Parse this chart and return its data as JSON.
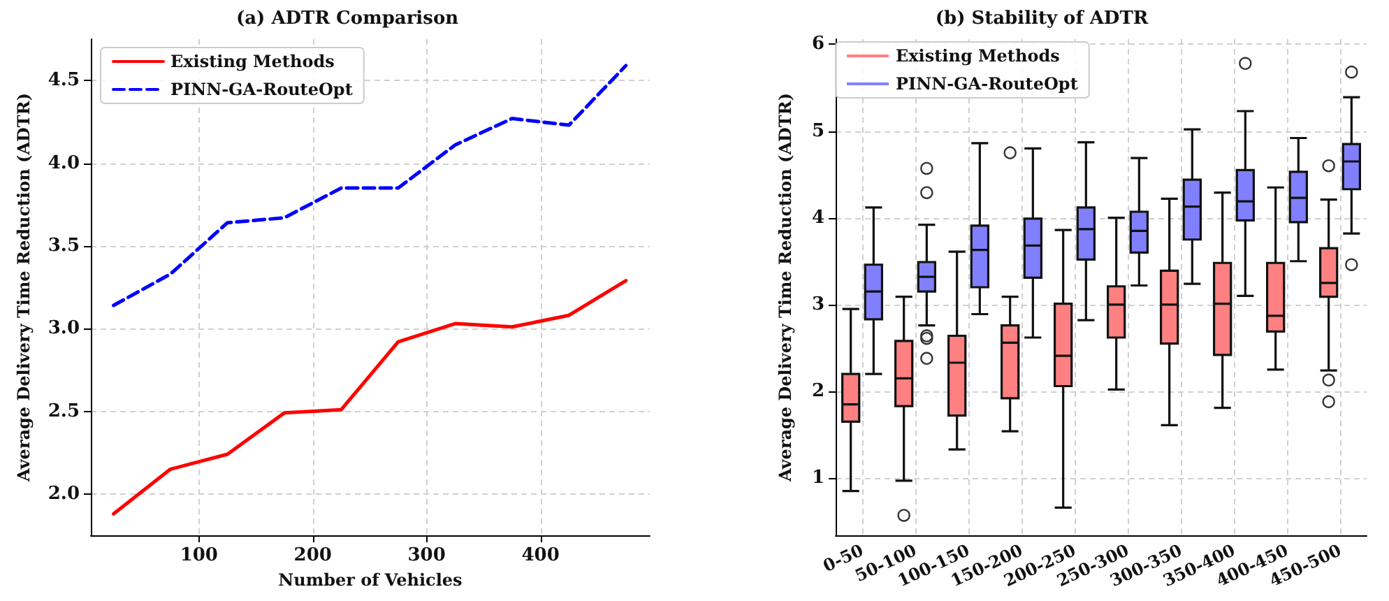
{
  "chart_data": [
    {
      "type": "line",
      "title": "(a) ADTR Comparison",
      "xlabel": "Number of Vehicles",
      "ylabel": "Average Delivery Time Reduction (ADTR)",
      "x": [
        25,
        75,
        125,
        175,
        225,
        275,
        325,
        375,
        425,
        475
      ],
      "series": [
        {
          "name": "Existing Methods",
          "color": "#ff0000",
          "line_style": "solid",
          "values": [
            1.88,
            2.15,
            2.24,
            2.49,
            2.51,
            2.92,
            3.03,
            3.01,
            3.08,
            3.29
          ]
        },
        {
          "name": "PINN-GA-RouteOpt",
          "color": "#0000ff",
          "line_style": "dashed",
          "values": [
            3.14,
            3.33,
            3.64,
            3.67,
            3.85,
            3.85,
            4.11,
            4.27,
            4.23,
            4.59
          ]
        }
      ],
      "xlim": [
        5,
        496
      ],
      "ylim": [
        1.75,
        4.75
      ],
      "xticks": [
        100,
        200,
        300,
        400
      ],
      "yticks": [
        {
          "value": 2,
          "label": "2.0"
        },
        2.5,
        {
          "value": 3,
          "label": "3.0"
        },
        3.5,
        {
          "value": 4,
          "label": "4.0"
        },
        4.5
      ],
      "grid": true,
      "legend": "top left",
      "marker": "none"
    },
    {
      "type": "box",
      "title": "(b) Stability of ADTR",
      "ylabel": "Average Delivery Time Reduction (ADTR)",
      "categories": [
        "0-50",
        "50-100",
        "100-150",
        "150-200",
        "200-250",
        "250-300",
        "300-350",
        "350-400",
        "400-450",
        "450-500"
      ],
      "series": [
        {
          "name": "Existing Methods",
          "color": "#ff8080",
          "boxes": [
            {
              "low": 0.85,
              "q1": 1.65,
              "median": 1.85,
              "q3": 2.2,
              "high": 2.95
            },
            {
              "low": 0.97,
              "q1": 1.83,
              "median": 2.15,
              "q3": 2.58,
              "high": 3.09,
              "outliers": [
                0.57
              ]
            },
            {
              "low": 1.33,
              "q1": 1.72,
              "median": 2.33,
              "q3": 2.64,
              "high": 3.61
            },
            {
              "low": 1.54,
              "q1": 1.92,
              "median": 2.56,
              "q3": 2.76,
              "high": 3.09,
              "outliers": [
                4.75
              ]
            },
            {
              "low": 0.66,
              "q1": 2.06,
              "median": 2.41,
              "q3": 3.01,
              "high": 3.86
            },
            {
              "low": 2.02,
              "q1": 2.62,
              "median": 3.0,
              "q3": 3.21,
              "high": 4.0
            },
            {
              "low": 1.61,
              "q1": 2.55,
              "median": 3.0,
              "q3": 3.39,
              "high": 4.22
            },
            {
              "low": 1.81,
              "q1": 2.42,
              "median": 3.01,
              "q3": 3.48,
              "high": 4.29
            },
            {
              "low": 2.25,
              "q1": 2.69,
              "median": 2.87,
              "q3": 3.48,
              "high": 4.35
            },
            {
              "low": 2.24,
              "q1": 3.09,
              "median": 3.25,
              "q3": 3.65,
              "high": 4.21,
              "outliers": [
                4.6,
                2.13,
                1.88
              ]
            }
          ]
        },
        {
          "name": "PINN-GA-RouteOpt",
          "color": "#8080ff",
          "boxes": [
            {
              "low": 2.2,
              "q1": 2.83,
              "median": 3.15,
              "q3": 3.46,
              "high": 4.12
            },
            {
              "low": 2.76,
              "q1": 3.15,
              "median": 3.32,
              "q3": 3.49,
              "high": 3.92,
              "outliers": [
                4.57,
                4.29,
                2.64,
                2.61,
                2.38
              ]
            },
            {
              "low": 2.89,
              "q1": 3.2,
              "median": 3.63,
              "q3": 3.91,
              "high": 4.86
            },
            {
              "low": 2.62,
              "q1": 3.31,
              "median": 3.68,
              "q3": 3.99,
              "high": 4.8
            },
            {
              "low": 2.82,
              "q1": 3.52,
              "median": 3.87,
              "q3": 4.12,
              "high": 4.87
            },
            {
              "low": 3.22,
              "q1": 3.6,
              "median": 3.85,
              "q3": 4.07,
              "high": 4.69
            },
            {
              "low": 3.24,
              "q1": 3.75,
              "median": 4.13,
              "q3": 4.44,
              "high": 5.02
            },
            {
              "low": 3.1,
              "q1": 3.97,
              "median": 4.19,
              "q3": 4.55,
              "high": 5.23,
              "outliers": [
                5.78
              ]
            },
            {
              "low": 3.5,
              "q1": 3.95,
              "median": 4.23,
              "q3": 4.53,
              "high": 4.92
            },
            {
              "low": 3.82,
              "q1": 4.33,
              "median": 4.65,
              "q3": 4.85,
              "high": 5.39,
              "outliers": [
                5.68,
                3.46
              ]
            }
          ]
        }
      ],
      "ylim": [
        0.34,
        6.06
      ],
      "yticks": [
        1,
        2,
        3,
        4,
        5,
        6
      ],
      "grid": true,
      "legend": "top left"
    }
  ]
}
